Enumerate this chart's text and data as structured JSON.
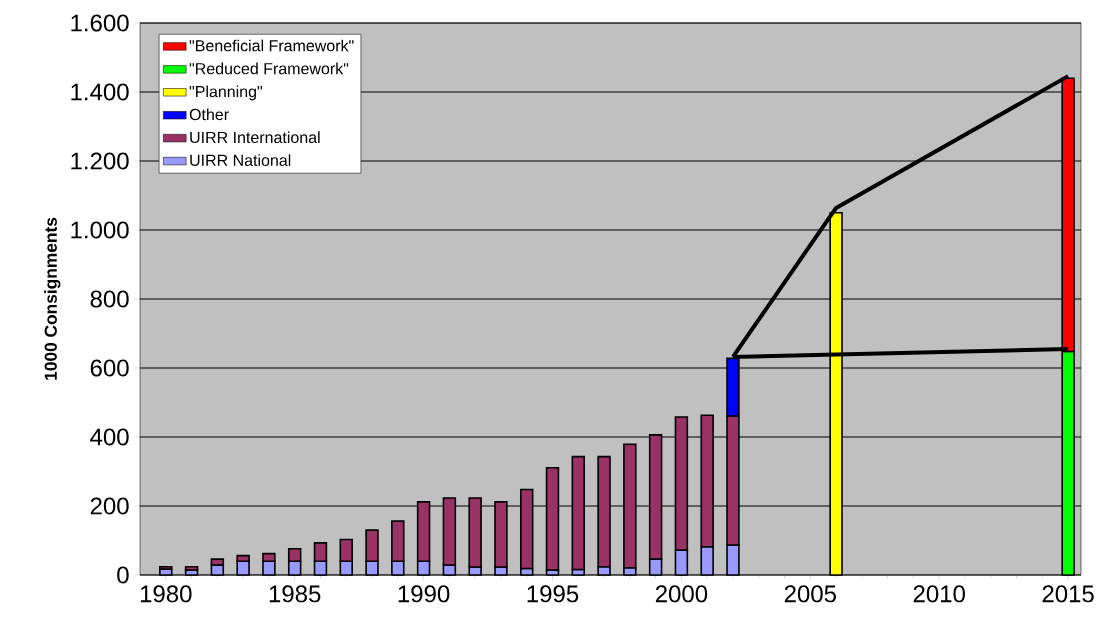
{
  "chart_data": {
    "type": "bar",
    "stacked": true,
    "ylabel": "1000 Consignments",
    "legend": "top left",
    "grid": "y",
    "x": [
      1980,
      1981,
      1982,
      1983,
      1984,
      1985,
      1986,
      1987,
      1988,
      1989,
      1990,
      1991,
      1992,
      1993,
      1994,
      1995,
      1996,
      1997,
      1998,
      1999,
      2000,
      2001,
      2002,
      2006,
      2015
    ],
    "xlim": [
      1979,
      2015.5
    ],
    "xticks": [
      1980,
      1985,
      1990,
      1995,
      2000,
      2005,
      2010,
      2015
    ],
    "ylim": [
      0,
      1600
    ],
    "yticks": [
      0,
      200,
      400,
      600,
      800,
      {
        "value": 1000,
        "label": "1.000"
      },
      {
        "value": 1200,
        "label": "1.200"
      },
      {
        "value": 1400,
        "label": "1.400"
      },
      {
        "value": 1600,
        "label": "1.600"
      }
    ],
    "series": [
      {
        "name": "UIRR National",
        "color": "#9999ff",
        "values": [
          17,
          14,
          29,
          40,
          40,
          40,
          40,
          40,
          40,
          40,
          40,
          29,
          23,
          23,
          19,
          14,
          16,
          24,
          21,
          46,
          72,
          82,
          87,
          null,
          null
        ]
      },
      {
        "name": "UIRR International",
        "color": "#993366",
        "values": [
          7,
          10,
          17,
          16,
          22,
          36,
          53,
          63,
          90,
          116,
          172,
          194,
          200,
          189,
          229,
          297,
          327,
          319,
          358,
          360,
          386,
          381,
          374,
          null,
          null
        ]
      },
      {
        "name": "Other",
        "color": "#0000ff",
        "values": [
          null,
          null,
          null,
          null,
          null,
          null,
          null,
          null,
          null,
          null,
          null,
          null,
          null,
          null,
          null,
          null,
          null,
          null,
          null,
          null,
          null,
          null,
          167,
          null,
          null
        ]
      },
      {
        "name": "\"Planning\"",
        "color": "#ffff00",
        "values": [
          null,
          null,
          null,
          null,
          null,
          null,
          null,
          null,
          null,
          null,
          null,
          null,
          null,
          null,
          null,
          null,
          null,
          null,
          null,
          null,
          null,
          null,
          null,
          1050,
          null
        ]
      },
      {
        "name": "\"Reduced Framework\"",
        "color": "#00ff00",
        "values": [
          null,
          null,
          null,
          null,
          null,
          null,
          null,
          null,
          null,
          null,
          null,
          null,
          null,
          null,
          null,
          null,
          null,
          null,
          null,
          null,
          null,
          null,
          null,
          null,
          648
        ]
      },
      {
        "name": "\"Beneficial Framework\"",
        "color": "#ff0000",
        "values": [
          null,
          null,
          null,
          null,
          null,
          null,
          null,
          null,
          null,
          null,
          null,
          null,
          null,
          null,
          null,
          null,
          null,
          null,
          null,
          null,
          null,
          null,
          null,
          null,
          792
        ]
      },
      {
        "type": "line",
        "color": "#000000",
        "x": [
          2002,
          2006,
          2015
        ],
        "values": [
          632,
          1064,
          1446
        ]
      },
      {
        "type": "line",
        "color": "#000000",
        "x": [
          2002,
          2015
        ],
        "values": [
          632,
          655
        ]
      }
    ]
  }
}
